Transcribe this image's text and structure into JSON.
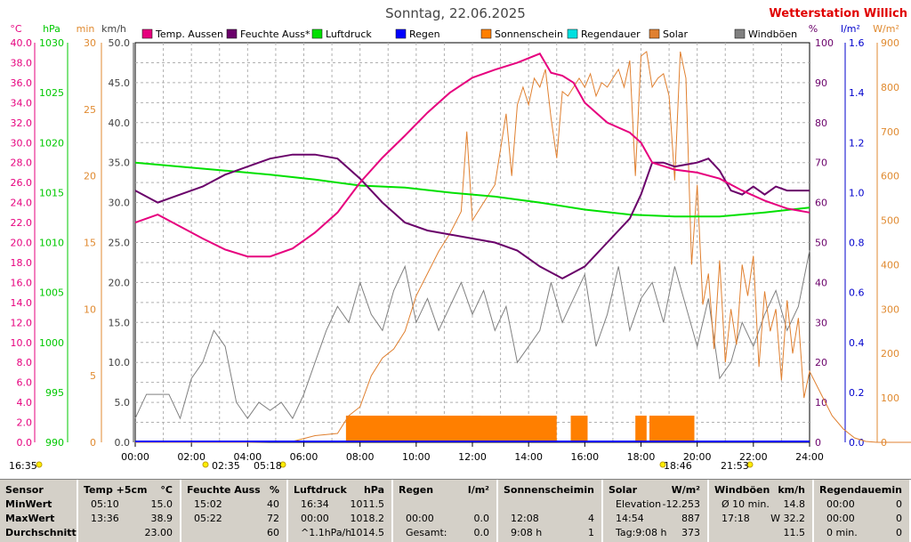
{
  "title": "Sonntag, 22.06.2025",
  "station": "Wetterstation Willich",
  "axis_units": {
    "temp": "°C",
    "pressure": "hPa",
    "minutes": "min",
    "wind": "km/h",
    "humidity": "%",
    "rain": "l/m²",
    "solar": "W/m²"
  },
  "colors": {
    "temp": "#e6007e",
    "humidity": "#6a006a",
    "pressure": "#00e000",
    "rain": "#0000ff",
    "sunshine": "#ff7f00",
    "rain_duration": "#00e0e0",
    "solar": "#e08030",
    "gust": "#808080",
    "pressure_axis": "#00c800",
    "minutes_axis": "#e08a30",
    "solar_axis": "#e08a30",
    "station": "#e00000"
  },
  "legend": [
    "Temp. Aussen",
    "Feuchte Auss*",
    "Luftdruck",
    "Regen",
    "Sonnenschein",
    "Regendauer",
    "Solar",
    "Windböen"
  ],
  "markers": {
    "left": "16:35",
    "sunrise": "05:18",
    "sunrise2": "02:35",
    "sunset": "18:46",
    "right": "21:53"
  },
  "chart_data": {
    "type": "line",
    "x_ticks": [
      "00:00",
      "02:00",
      "04:00",
      "06:00",
      "08:00",
      "10:00",
      "12:00",
      "14:00",
      "16:00",
      "18:00",
      "20:00",
      "22:00",
      "24:00"
    ],
    "axes": {
      "temp": {
        "ticks": [
          "0.0",
          "2.0",
          "4.0",
          "6.0",
          "8.0",
          "10.0",
          "12.0",
          "14.0",
          "16.0",
          "18.0",
          "20.0",
          "22.0",
          "24.0",
          "26.0",
          "28.0",
          "30.0",
          "32.0",
          "34.0",
          "36.0",
          "38.0",
          "40.0"
        ],
        "range": [
          0,
          40
        ]
      },
      "pressure": {
        "ticks": [
          "990",
          "995",
          "1000",
          "1005",
          "1010",
          "1015",
          "1020",
          "1025",
          "1030"
        ],
        "range": [
          990,
          1030
        ]
      },
      "minutes": {
        "ticks": [
          "0",
          "5",
          "10",
          "15",
          "20",
          "25",
          "30"
        ],
        "range": [
          0,
          30
        ]
      },
      "wind": {
        "ticks": [
          "0.0",
          "5.0",
          "10.0",
          "15.0",
          "20.0",
          "25.0",
          "30.0",
          "35.0",
          "40.0",
          "45.0",
          "50.0"
        ],
        "range": [
          0,
          50
        ]
      },
      "humidity": {
        "ticks": [
          "0",
          "10",
          "20",
          "30",
          "40",
          "50",
          "60",
          "70",
          "80",
          "90",
          "100"
        ],
        "range": [
          0,
          100
        ]
      },
      "rain": {
        "ticks": [
          "0.0",
          "0.2",
          "0.4",
          "0.6",
          "0.8",
          "1.0",
          "1.2",
          "1.4",
          "1.6"
        ],
        "range": [
          0,
          1.6
        ]
      },
      "solar": {
        "ticks": [
          "0",
          "100",
          "200",
          "300",
          "400",
          "500",
          "600",
          "700",
          "800",
          "900"
        ],
        "range": [
          0,
          900
        ]
      }
    },
    "series": [
      {
        "name": "Temp. Aussen",
        "axis": "temp",
        "points": [
          [
            0,
            22
          ],
          [
            2,
            22.8
          ],
          [
            4,
            21.6
          ],
          [
            6,
            20.4
          ],
          [
            8,
            19.3
          ],
          [
            10,
            18.6
          ],
          [
            12,
            18.6
          ],
          [
            14,
            19.4
          ],
          [
            16,
            21
          ],
          [
            18,
            23
          ],
          [
            20,
            26
          ],
          [
            22,
            28.5
          ],
          [
            24,
            30.7
          ],
          [
            26,
            33
          ],
          [
            28,
            35
          ],
          [
            30,
            36.5
          ],
          [
            32,
            37.3
          ],
          [
            34,
            38
          ],
          [
            36,
            38.9
          ],
          [
            37,
            37
          ],
          [
            38,
            36.7
          ],
          [
            39,
            36
          ],
          [
            40,
            34
          ],
          [
            42,
            32
          ],
          [
            44,
            31
          ],
          [
            45,
            30
          ],
          [
            46,
            28
          ],
          [
            48,
            27.3
          ],
          [
            50,
            27
          ],
          [
            52,
            26.4
          ],
          [
            54,
            25.2
          ],
          [
            56,
            24.2
          ],
          [
            58,
            23.4
          ],
          [
            60,
            23
          ]
        ]
      },
      {
        "name": "Feuchte Auss*",
        "axis": "humidity",
        "points": [
          [
            0,
            63
          ],
          [
            2,
            60
          ],
          [
            4,
            62
          ],
          [
            6,
            64
          ],
          [
            8,
            67
          ],
          [
            10,
            69
          ],
          [
            12,
            71
          ],
          [
            14,
            72
          ],
          [
            16,
            72
          ],
          [
            18,
            71
          ],
          [
            20,
            66
          ],
          [
            22,
            60
          ],
          [
            24,
            55
          ],
          [
            26,
            53
          ],
          [
            28,
            52
          ],
          [
            30,
            51
          ],
          [
            32,
            50
          ],
          [
            34,
            48
          ],
          [
            36,
            44
          ],
          [
            38,
            41
          ],
          [
            40,
            44
          ],
          [
            42,
            50
          ],
          [
            44,
            56
          ],
          [
            45,
            62
          ],
          [
            46,
            70
          ],
          [
            47,
            70
          ],
          [
            48,
            69
          ],
          [
            50,
            70
          ],
          [
            51,
            71
          ],
          [
            52,
            68
          ],
          [
            53,
            63
          ],
          [
            54,
            62
          ],
          [
            55,
            64
          ],
          [
            56,
            62
          ],
          [
            57,
            64
          ],
          [
            58,
            63
          ],
          [
            60,
            63
          ]
        ]
      },
      {
        "name": "Luftdruck",
        "axis": "pressure",
        "points": [
          [
            0,
            1018
          ],
          [
            4,
            1017.6
          ],
          [
            8,
            1017.2
          ],
          [
            12,
            1016.8
          ],
          [
            16,
            1016.3
          ],
          [
            20,
            1015.7
          ],
          [
            24,
            1015.5
          ],
          [
            28,
            1015
          ],
          [
            32,
            1014.6
          ],
          [
            36,
            1014
          ],
          [
            40,
            1013.3
          ],
          [
            44,
            1012.8
          ],
          [
            48,
            1012.6
          ],
          [
            52,
            1012.6
          ],
          [
            56,
            1013
          ],
          [
            60,
            1013.5
          ]
        ]
      },
      {
        "name": "Solar",
        "axis": "solar",
        "points": [
          [
            0,
            0
          ],
          [
            10,
            0
          ],
          [
            14,
            2
          ],
          [
            16,
            15
          ],
          [
            18,
            20
          ],
          [
            19,
            60
          ],
          [
            20,
            80
          ],
          [
            21,
            150
          ],
          [
            22,
            190
          ],
          [
            23,
            210
          ],
          [
            24,
            250
          ],
          [
            25,
            330
          ],
          [
            26,
            380
          ],
          [
            27,
            430
          ],
          [
            28,
            470
          ],
          [
            29,
            520
          ],
          [
            29.5,
            700
          ],
          [
            30,
            500
          ],
          [
            31,
            540
          ],
          [
            32,
            580
          ],
          [
            33,
            740
          ],
          [
            33.5,
            600
          ],
          [
            34,
            760
          ],
          [
            34.5,
            800
          ],
          [
            35,
            760
          ],
          [
            35.5,
            820
          ],
          [
            36,
            800
          ],
          [
            36.5,
            840
          ],
          [
            37,
            730
          ],
          [
            37.5,
            640
          ],
          [
            38,
            790
          ],
          [
            38.5,
            780
          ],
          [
            39,
            800
          ],
          [
            39.5,
            820
          ],
          [
            40,
            800
          ],
          [
            40.5,
            830
          ],
          [
            41,
            780
          ],
          [
            41.5,
            810
          ],
          [
            42,
            800
          ],
          [
            42.5,
            820
          ],
          [
            43,
            840
          ],
          [
            43.5,
            800
          ],
          [
            44,
            860
          ],
          [
            44.5,
            600
          ],
          [
            45,
            870
          ],
          [
            45.5,
            880
          ],
          [
            46,
            800
          ],
          [
            46.5,
            820
          ],
          [
            47,
            830
          ],
          [
            47.5,
            780
          ],
          [
            48,
            590
          ],
          [
            48.5,
            880
          ],
          [
            49,
            820
          ],
          [
            49.5,
            400
          ],
          [
            50,
            580
          ],
          [
            50.5,
            310
          ],
          [
            51,
            380
          ],
          [
            51.5,
            210
          ],
          [
            52,
            410
          ],
          [
            52.5,
            180
          ],
          [
            53,
            300
          ],
          [
            53.5,
            220
          ],
          [
            54,
            400
          ],
          [
            54.5,
            330
          ],
          [
            55,
            420
          ],
          [
            55.5,
            170
          ],
          [
            56,
            340
          ],
          [
            56.5,
            250
          ],
          [
            57,
            300
          ],
          [
            57.5,
            140
          ],
          [
            58,
            320
          ],
          [
            58.5,
            200
          ],
          [
            59,
            280
          ],
          [
            59.5,
            100
          ],
          [
            60,
            160
          ],
          [
            61,
            110
          ],
          [
            62,
            60
          ],
          [
            63,
            30
          ],
          [
            64,
            10
          ],
          [
            65,
            2
          ],
          [
            66,
            0
          ],
          [
            72,
            0
          ]
        ]
      },
      {
        "name": "Windböen",
        "axis": "wind",
        "points": [
          [
            0,
            3
          ],
          [
            1,
            6
          ],
          [
            2,
            6
          ],
          [
            3,
            6
          ],
          [
            4,
            3
          ],
          [
            5,
            8
          ],
          [
            6,
            10
          ],
          [
            7,
            14
          ],
          [
            8,
            12
          ],
          [
            9,
            5
          ],
          [
            10,
            3
          ],
          [
            11,
            5
          ],
          [
            12,
            4
          ],
          [
            13,
            5
          ],
          [
            14,
            3
          ],
          [
            15,
            6
          ],
          [
            16,
            10
          ],
          [
            17,
            14
          ],
          [
            18,
            17
          ],
          [
            19,
            15
          ],
          [
            20,
            20
          ],
          [
            21,
            16
          ],
          [
            22,
            14
          ],
          [
            23,
            19
          ],
          [
            24,
            22
          ],
          [
            25,
            15
          ],
          [
            26,
            18
          ],
          [
            27,
            14
          ],
          [
            28,
            17
          ],
          [
            29,
            20
          ],
          [
            30,
            16
          ],
          [
            31,
            19
          ],
          [
            32,
            14
          ],
          [
            33,
            17
          ],
          [
            34,
            10
          ],
          [
            35,
            12
          ],
          [
            36,
            14
          ],
          [
            37,
            20
          ],
          [
            38,
            15
          ],
          [
            39,
            18
          ],
          [
            40,
            21
          ],
          [
            41,
            12
          ],
          [
            42,
            16
          ],
          [
            43,
            22
          ],
          [
            44,
            14
          ],
          [
            45,
            18
          ],
          [
            46,
            20
          ],
          [
            47,
            15
          ],
          [
            48,
            22
          ],
          [
            49,
            17
          ],
          [
            50,
            12
          ],
          [
            51,
            18
          ],
          [
            52,
            8
          ],
          [
            53,
            10
          ],
          [
            54,
            15
          ],
          [
            55,
            12
          ],
          [
            56,
            16
          ],
          [
            57,
            19
          ],
          [
            58,
            14
          ],
          [
            59,
            17
          ],
          [
            60,
            24
          ]
        ]
      }
    ],
    "bars": [
      {
        "name": "Sonnenschein",
        "axis": "minutes",
        "start_hours": [
          7.5,
          12,
          15.5,
          17.8,
          18.3
        ],
        "end_hours": [
          15,
          12.3,
          16.1,
          18.2,
          19.9
        ],
        "value": 2
      },
      {
        "name": "Regen",
        "axis": "rain",
        "value": 0
      }
    ]
  },
  "stats": {
    "columns": [
      {
        "header": "Sensor",
        "unit": "",
        "rows": [
          [
            "MinWert",
            ""
          ],
          [
            "MaxWert",
            ""
          ],
          [
            "Durchschnitt",
            ""
          ]
        ]
      },
      {
        "header": "Temp +5cm",
        "unit": "°C",
        "rows": [
          [
            "05:10",
            "15.0"
          ],
          [
            "13:36",
            "38.9"
          ],
          [
            "",
            "23.00"
          ]
        ]
      },
      {
        "header": "Feuchte Auss",
        "unit": "%",
        "rows": [
          [
            "15:02",
            "40"
          ],
          [
            "05:22",
            "72"
          ],
          [
            "",
            "60"
          ]
        ]
      },
      {
        "header": "Luftdruck",
        "unit": "hPa",
        "rows": [
          [
            "16:34",
            "1011.5"
          ],
          [
            "00:00",
            "1018.2"
          ],
          [
            "^1.1hPa/h",
            "1014.5"
          ]
        ]
      },
      {
        "header": "Regen",
        "unit": "l/m²",
        "rows": [
          [
            "",
            ""
          ],
          [
            "00:00",
            "0.0"
          ],
          [
            "Gesamt:",
            "0.0"
          ]
        ]
      },
      {
        "header": "Sonnenschein",
        "unit": "min",
        "rows": [
          [
            "",
            ""
          ],
          [
            "12:08",
            "4"
          ],
          [
            "9:08 h",
            "1"
          ]
        ]
      },
      {
        "header": "Solar",
        "unit": "W/m²",
        "rows": [
          [
            "Elevation",
            "-12.253"
          ],
          [
            "14:54",
            "887"
          ],
          [
            "Tag:9:08 h",
            "373"
          ]
        ]
      },
      {
        "header": "Windböen",
        "unit": "km/h",
        "rows": [
          [
            "Ø 10 min.",
            "14.8"
          ],
          [
            "17:18",
            "W 32.2"
          ],
          [
            "",
            "11.5"
          ]
        ]
      },
      {
        "header": "Regendauer",
        "unit": "min",
        "rows": [
          [
            "00:00",
            "0"
          ],
          [
            "00:00",
            "0"
          ],
          [
            "0 min.",
            "0"
          ]
        ]
      }
    ]
  }
}
